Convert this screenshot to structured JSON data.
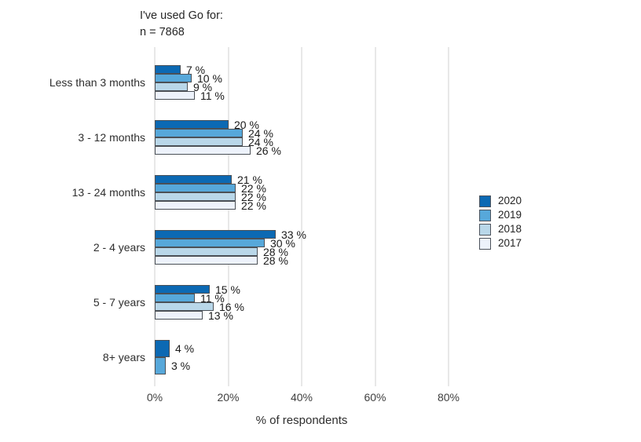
{
  "chart_data": {
    "type": "bar",
    "orientation": "horizontal",
    "title": "I've used Go for:",
    "subtitle": "n = 7868",
    "xlabel": "% of respondents",
    "x_ticks": [
      {
        "label": "0%",
        "pct": 0
      },
      {
        "label": "20%",
        "pct": 20
      },
      {
        "label": "40%",
        "pct": 40
      },
      {
        "label": "60%",
        "pct": 60
      },
      {
        "label": "80%",
        "pct": 80
      }
    ],
    "xlim": [
      0,
      80
    ],
    "grid": true,
    "legend_position": "right",
    "value_suffix": " %",
    "categories": [
      "Less than 3 months",
      "3 - 12 months",
      "13 - 24 months",
      "2 - 4 years",
      "5 - 7 years",
      "8+ years"
    ],
    "series": [
      {
        "name": "2020",
        "color": "#0c69b3",
        "values": [
          7,
          20,
          21,
          33,
          15,
          4
        ]
      },
      {
        "name": "2019",
        "color": "#57a8da",
        "values": [
          10,
          24,
          22,
          30,
          11,
          3
        ]
      },
      {
        "name": "2018",
        "color": "#b9d7e9",
        "values": [
          9,
          24,
          22,
          28,
          16,
          null
        ]
      },
      {
        "name": "2017",
        "color": "#edf2fb",
        "values": [
          11,
          26,
          22,
          28,
          13,
          null
        ]
      }
    ],
    "colors": {
      "bar_border": "#4b5056",
      "gridline": "#e8e8e8",
      "text": "#1a1a1a"
    }
  }
}
